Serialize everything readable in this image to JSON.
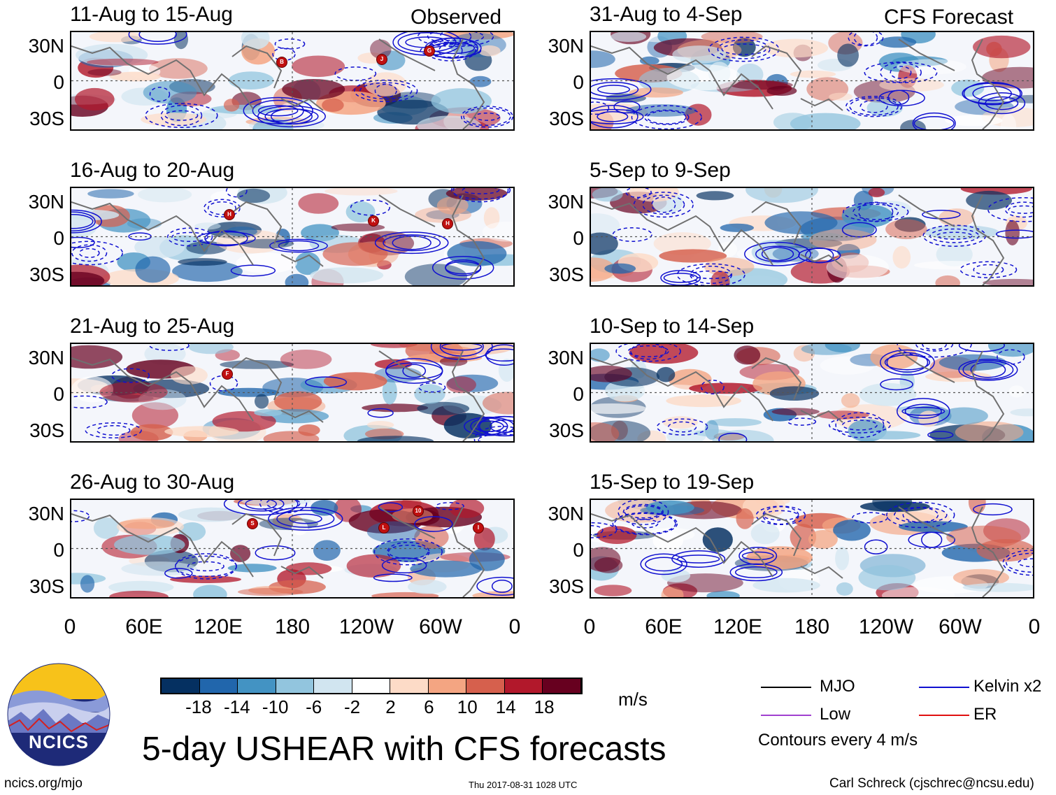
{
  "panels": {
    "observed_tag": "Observed",
    "forecast_tag": "CFS Forecast",
    "left": [
      {
        "title": "11-Aug to 15-Aug",
        "storms": [
          "B",
          "J",
          "G"
        ]
      },
      {
        "title": "16-Aug to 20-Aug",
        "storms": [
          "H",
          "K",
          "H"
        ]
      },
      {
        "title": "21-Aug to 25-Aug",
        "storms": [
          "F"
        ]
      },
      {
        "title": "26-Aug to 30-Aug",
        "storms": [
          "S",
          "L",
          "10",
          "I"
        ]
      }
    ],
    "right": [
      {
        "title": "31-Aug to 4-Sep"
      },
      {
        "title": "5-Sep to 9-Sep"
      },
      {
        "title": "10-Sep to 14-Sep"
      },
      {
        "title": "15-Sep to 19-Sep"
      }
    ],
    "lat_ticks": [
      "30N",
      "0",
      "30S"
    ],
    "lon_ticks": [
      "0",
      "60E",
      "120E",
      "180",
      "120W",
      "60W",
      "0"
    ]
  },
  "chart_data": {
    "type": "heatmap",
    "title": "5-day USHEAR with CFS forecasts",
    "variable": "USHEAR anomaly",
    "units": "m/s",
    "x_range": [
      0,
      360
    ],
    "y_range": [
      -40,
      40
    ],
    "color_levels": [
      "-18",
      "-14",
      "-10",
      "-6",
      "-2",
      "2",
      "6",
      "10",
      "14",
      "18"
    ],
    "colors": [
      "#053061",
      "#2166ac",
      "#4393c3",
      "#92c5de",
      "#d1e5f0",
      "#ffffff",
      "#fddbc7",
      "#f4a582",
      "#d6604d",
      "#b2182b",
      "#67001f"
    ],
    "contour_interval": "Contours every 4 m/s",
    "contour_legend": [
      {
        "name": "MJO",
        "color": "#000000"
      },
      {
        "name": "Kelvin x2",
        "color": "#1010d0"
      },
      {
        "name": "Low",
        "color": "#a040d0"
      },
      {
        "name": "ER",
        "color": "#e01010"
      }
    ]
  },
  "footer": {
    "logo_text": "NCICS",
    "website": "ncics.org/mjo",
    "timestamp": "Thu 2017-08-31 1028 UTC",
    "author": "Carl Schreck (cjschrec@ncsu.edu)"
  }
}
